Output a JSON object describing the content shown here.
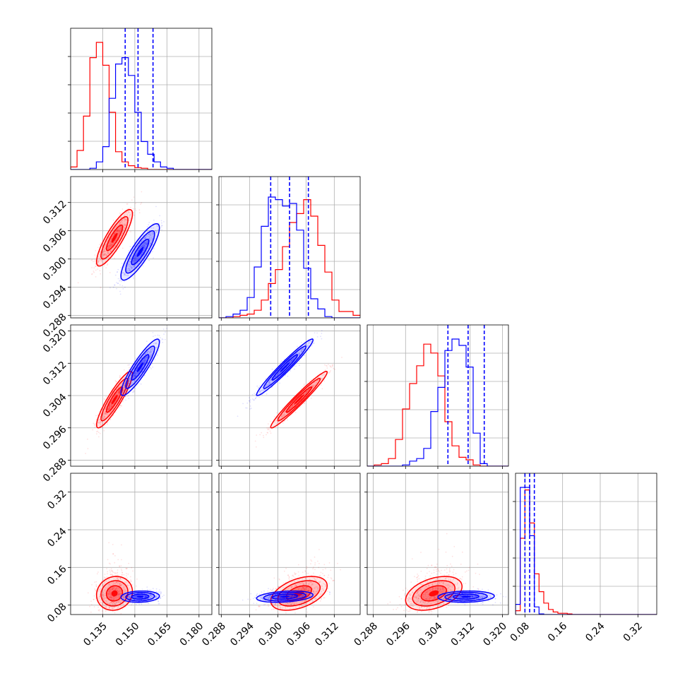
{
  "chart_data": {
    "type": "corner",
    "grid": true,
    "series": [
      {
        "name": "",
        "color": "#ff0000"
      },
      {
        "name": "",
        "color": "#0000ff"
      }
    ],
    "parameters": [
      {
        "range": [
          0.12,
          0.186
        ],
        "ticks": [
          "0.135",
          "0.150",
          "0.165",
          "0.180"
        ]
      },
      {
        "range": [
          0.2875,
          0.3175
        ],
        "ticks": [
          "0.288",
          "0.294",
          "0.300",
          "0.306",
          "0.312"
        ]
      },
      {
        "range": [
          0.2865,
          0.3215
        ],
        "ticks": [
          "0.288",
          "0.296",
          "0.304",
          "0.312",
          "0.320"
        ]
      },
      {
        "range": [
          0.06,
          0.36
        ],
        "ticks": [
          "0.08",
          "0.16",
          "0.24",
          "0.32"
        ]
      }
    ],
    "diagonal_quantiles": [
      [
        0.1455,
        0.1515,
        0.1585
      ],
      [
        0.2985,
        0.3025,
        0.3065
      ],
      [
        0.3065,
        0.3115,
        0.3155
      ],
      [
        0.08,
        0.09,
        0.1
      ]
    ],
    "histograms": [
      {
        "red": {
          "edges_start": 0.12,
          "bin_width": 0.003,
          "counts": [
            0.02,
            0.15,
            0.42,
            0.88,
            1.0,
            0.82,
            0.45,
            0.14,
            0.06,
            0.03,
            0.015,
            0.01,
            0,
            0,
            0,
            0,
            0,
            0,
            0,
            0,
            0,
            0
          ]
        },
        "blue": {
          "edges_start": 0.12,
          "bin_width": 0.003,
          "counts": [
            0,
            0,
            0,
            0.01,
            0.06,
            0.18,
            0.56,
            0.83,
            0.88,
            0.74,
            0.45,
            0.22,
            0.12,
            0.06,
            0.02,
            0.01,
            0,
            0,
            0,
            0,
            0,
            0
          ]
        }
      },
      {
        "red": {
          "edges_start": 0.2875,
          "bin_width": 0.0015,
          "counts": [
            0,
            0,
            0.01,
            0.02,
            0.03,
            0.06,
            0.14,
            0.27,
            0.38,
            0.56,
            0.75,
            0.82,
            0.93,
            0.8,
            0.57,
            0.36,
            0.14,
            0.05,
            0.05,
            0.02
          ]
        },
        "blue": {
          "edges_start": 0.2875,
          "bin_width": 0.0015,
          "counts": [
            0,
            0.01,
            0.03,
            0.06,
            0.16,
            0.4,
            0.72,
            0.95,
            0.93,
            0.88,
            0.9,
            0.69,
            0.39,
            0.15,
            0.07,
            0.01,
            0,
            0,
            0,
            0
          ]
        }
      },
      {
        "red": {
          "edges_start": 0.2865,
          "bin_width": 0.00175,
          "counts": [
            0,
            0.01,
            0.02,
            0.06,
            0.21,
            0.45,
            0.65,
            0.79,
            0.96,
            0.89,
            0.71,
            0.35,
            0.16,
            0.07,
            0.05,
            0.01,
            0,
            0,
            0,
            0
          ]
        },
        "blue": {
          "edges_start": 0.2865,
          "bin_width": 0.00175,
          "counts": [
            0,
            0,
            0,
            0,
            0,
            0.01,
            0.04,
            0.06,
            0.14,
            0.43,
            0.62,
            0.91,
            1.0,
            0.95,
            0.78,
            0.26,
            0.02,
            0,
            0,
            0
          ]
        }
      },
      {
        "red": {
          "edges_start": 0.06,
          "bin_width": 0.01,
          "counts": [
            0.03,
            0.6,
            0.98,
            0.72,
            0.32,
            0.18,
            0.09,
            0.04,
            0.02,
            0.01,
            0.01,
            0.005,
            0,
            0,
            0,
            0,
            0,
            0,
            0,
            0,
            0,
            0,
            0,
            0,
            0,
            0,
            0,
            0,
            0,
            0
          ]
        },
        "blue": {
          "edges_start": 0.06,
          "bin_width": 0.01,
          "counts": [
            0.08,
            1.0,
            1.0,
            0.62,
            0.06,
            0.005,
            0,
            0,
            0,
            0,
            0,
            0,
            0,
            0,
            0,
            0,
            0,
            0,
            0,
            0,
            0,
            0,
            0,
            0,
            0,
            0,
            0,
            0,
            0,
            0
          ]
        }
      }
    ],
    "pairs": [
      {
        "row": 1,
        "col": 0,
        "red": {
          "mean": [
            0.1405,
            0.3045
          ],
          "sd": [
            0.0042,
            0.003
          ],
          "corr": 0.85
        },
        "blue": {
          "mean": [
            0.1525,
            0.3015
          ],
          "sd": [
            0.0045,
            0.003
          ],
          "corr": 0.85
        }
      },
      {
        "row": 2,
        "col": 0,
        "red": {
          "mean": [
            0.1405,
            0.303
          ],
          "sd": [
            0.0042,
            0.0035
          ],
          "corr": 0.9
        },
        "blue": {
          "mean": [
            0.1525,
            0.311
          ],
          "sd": [
            0.0045,
            0.0035
          ],
          "corr": 0.9
        }
      },
      {
        "row": 2,
        "col": 1,
        "red": {
          "mean": [
            0.3045,
            0.303
          ],
          "sd": [
            0.003,
            0.0035
          ],
          "corr": 0.97
        },
        "blue": {
          "mean": [
            0.3015,
            0.311
          ],
          "sd": [
            0.003,
            0.0035
          ],
          "corr": 0.97
        }
      },
      {
        "row": 3,
        "col": 0,
        "red": {
          "mean": [
            0.1405,
            0.105
          ],
          "sd": [
            0.0042,
            0.018
          ],
          "corr": 0.1
        },
        "blue": {
          "mean": [
            0.1525,
            0.098
          ],
          "sd": [
            0.0045,
            0.006
          ],
          "corr": 0.1
        }
      },
      {
        "row": 3,
        "col": 1,
        "red": {
          "mean": [
            0.3045,
            0.105
          ],
          "sd": [
            0.003,
            0.018
          ],
          "corr": 0.45
        },
        "blue": {
          "mean": [
            0.3015,
            0.098
          ],
          "sd": [
            0.003,
            0.006
          ],
          "corr": 0.3
        }
      },
      {
        "row": 3,
        "col": 2,
        "red": {
          "mean": [
            0.303,
            0.105
          ],
          "sd": [
            0.0035,
            0.018
          ],
          "corr": 0.4
        },
        "blue": {
          "mean": [
            0.311,
            0.098
          ],
          "sd": [
            0.0035,
            0.006
          ],
          "corr": 0.1
        }
      }
    ]
  }
}
